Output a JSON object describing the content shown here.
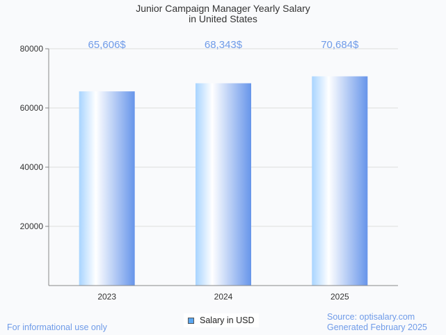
{
  "chart_data": {
    "type": "bar",
    "title": "Junior Campaign Manager Yearly Salary",
    "subtitle": "in United States",
    "categories": [
      "2023",
      "2024",
      "2025"
    ],
    "values": [
      65606,
      68343,
      70684
    ],
    "data_labels": [
      "65,606$",
      "68,343$",
      "70,684$"
    ],
    "xlabel": "",
    "ylabel": "",
    "ylim": [
      0,
      80000
    ],
    "yticks": [
      20000,
      40000,
      60000,
      80000
    ],
    "grid": true,
    "legend": {
      "entries": [
        "Salary in USD"
      ],
      "placement": "bottom-center"
    },
    "colors": {
      "bar_left": "#a8d4ff",
      "bar_mid": "#ffffff",
      "bar_right": "#6795ea",
      "label": "#6f9be8"
    }
  },
  "footer": {
    "disclaimer": "For informational use only",
    "source": "Source: optisalary.com",
    "generated": "Generated February 2025"
  }
}
